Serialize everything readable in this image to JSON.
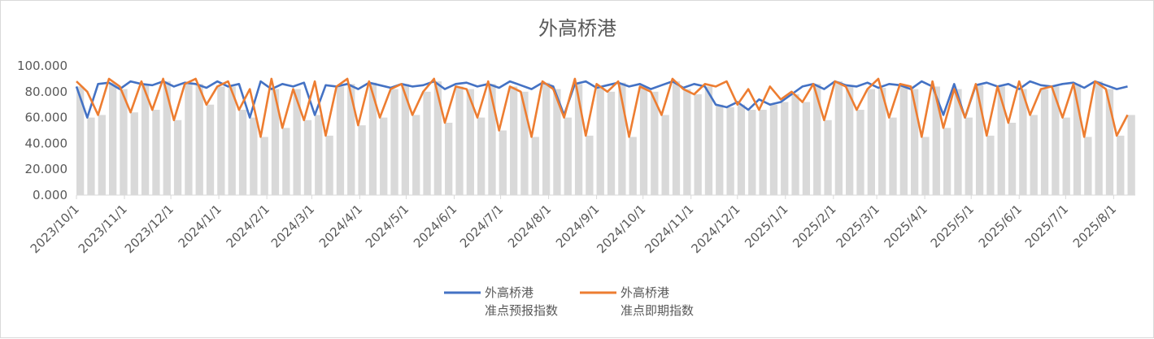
{
  "chart_data": {
    "type": "line",
    "title": "外高桥港",
    "ylim": [
      0,
      100
    ],
    "yticks": [
      "0.000",
      "20.000",
      "40.000",
      "60.000",
      "80.000",
      "100.000"
    ],
    "xticks": [
      "2023/10/1",
      "2023/11/1",
      "2023/12/1",
      "2024/1/1",
      "2024/2/1",
      "2024/3/1",
      "2024/4/1",
      "2024/5/1",
      "2024/6/1",
      "2024/7/1",
      "2024/8/1",
      "2024/9/1",
      "2024/10/1",
      "2024/11/1",
      "2024/12/1",
      "2025/1/1",
      "2025/2/1",
      "2025/3/1",
      "2025/4/1",
      "2025/5/1",
      "2025/6/1",
      "2025/7/1",
      "2025/8/1"
    ],
    "x_range": [
      "2023/10/1",
      "2025/8/15"
    ],
    "grid": false,
    "legend_position": "bottom",
    "x": [
      "2023/10/1",
      "2023/10/8",
      "2023/10/15",
      "2023/10/22",
      "2023/10/29",
      "2023/11/5",
      "2023/11/12",
      "2023/11/19",
      "2023/11/26",
      "2023/12/3",
      "2023/12/10",
      "2023/12/17",
      "2023/12/24",
      "2023/12/31",
      "2024/1/7",
      "2024/1/14",
      "2024/1/21",
      "2024/1/28",
      "2024/2/4",
      "2024/2/11",
      "2024/2/18",
      "2024/2/25",
      "2024/3/3",
      "2024/3/10",
      "2024/3/17",
      "2024/3/24",
      "2024/3/31",
      "2024/4/7",
      "2024/4/14",
      "2024/4/21",
      "2024/4/28",
      "2024/5/5",
      "2024/5/12",
      "2024/5/19",
      "2024/5/26",
      "2024/6/2",
      "2024/6/9",
      "2024/6/16",
      "2024/6/23",
      "2024/6/30",
      "2024/7/7",
      "2024/7/14",
      "2024/7/21",
      "2024/7/28",
      "2024/8/4",
      "2024/8/11",
      "2024/8/18",
      "2024/8/25",
      "2024/9/1",
      "2024/9/8",
      "2024/9/15",
      "2024/9/22",
      "2024/9/29",
      "2024/10/6",
      "2024/10/13",
      "2024/10/20",
      "2024/10/27",
      "2024/11/3",
      "2024/11/10",
      "2024/11/17",
      "2024/11/24",
      "2024/12/1",
      "2024/12/8",
      "2024/12/15",
      "2024/12/22",
      "2024/12/29",
      "2025/1/5",
      "2025/1/12",
      "2025/1/19",
      "2025/1/26",
      "2025/2/2",
      "2025/2/9",
      "2025/2/16",
      "2025/2/23",
      "2025/3/2",
      "2025/3/9",
      "2025/3/16",
      "2025/3/23",
      "2025/3/30",
      "2025/4/6",
      "2025/4/13",
      "2025/4/20",
      "2025/4/27",
      "2025/5/4",
      "2025/5/11",
      "2025/5/18",
      "2025/5/25",
      "2025/6/1",
      "2025/6/8",
      "2025/6/15",
      "2025/6/22",
      "2025/6/29",
      "2025/7/6",
      "2025/7/13",
      "2025/7/20",
      "2025/7/27",
      "2025/8/3",
      "2025/8/10"
    ],
    "series": [
      {
        "name": "外高桥港\n准点预报指数",
        "name_lines": [
          "外高桥港",
          "准点预报指数"
        ],
        "color": "#4472c4",
        "values": [
          84,
          60,
          86,
          87,
          82,
          88,
          86,
          85,
          88,
          84,
          87,
          86,
          83,
          88,
          84,
          86,
          60,
          88,
          82,
          86,
          84,
          87,
          62,
          85,
          84,
          86,
          82,
          87,
          85,
          83,
          86,
          84,
          85,
          88,
          82,
          86,
          87,
          84,
          86,
          83,
          88,
          85,
          82,
          87,
          84,
          62,
          86,
          88,
          83,
          85,
          87,
          84,
          86,
          82,
          85,
          88,
          83,
          86,
          84,
          70,
          68,
          72,
          66,
          74,
          70,
          72,
          78,
          84,
          86,
          82,
          88,
          85,
          84,
          87,
          83,
          86,
          85,
          82,
          88,
          84,
          62,
          86,
          60,
          85,
          87,
          84,
          86,
          82,
          88,
          85,
          84,
          86,
          87,
          83,
          88,
          85,
          82,
          84
        ]
      },
      {
        "name": "外高桥港\n准点即期指数",
        "name_lines": [
          "外高桥港",
          "准点即期指数"
        ],
        "color": "#ed7d31",
        "values": [
          88,
          80,
          62,
          90,
          84,
          64,
          88,
          66,
          90,
          58,
          86,
          90,
          70,
          84,
          88,
          66,
          82,
          45,
          90,
          52,
          82,
          58,
          88,
          46,
          84,
          90,
          54,
          88,
          60,
          82,
          86,
          62,
          80,
          90,
          56,
          84,
          82,
          60,
          88,
          50,
          84,
          80,
          45,
          88,
          82,
          60,
          90,
          46,
          86,
          80,
          88,
          45,
          84,
          80,
          62,
          90,
          82,
          78,
          86,
          84,
          88,
          70,
          82,
          66,
          84,
          74,
          80,
          72,
          86,
          58,
          88,
          84,
          66,
          82,
          90,
          60,
          86,
          84,
          45,
          88,
          52,
          82,
          60,
          86,
          46,
          84,
          56,
          88,
          62,
          82,
          84,
          60,
          86,
          45,
          88,
          82,
          46,
          62
        ]
      }
    ],
    "background_bars_color": "#d9d9d9"
  }
}
